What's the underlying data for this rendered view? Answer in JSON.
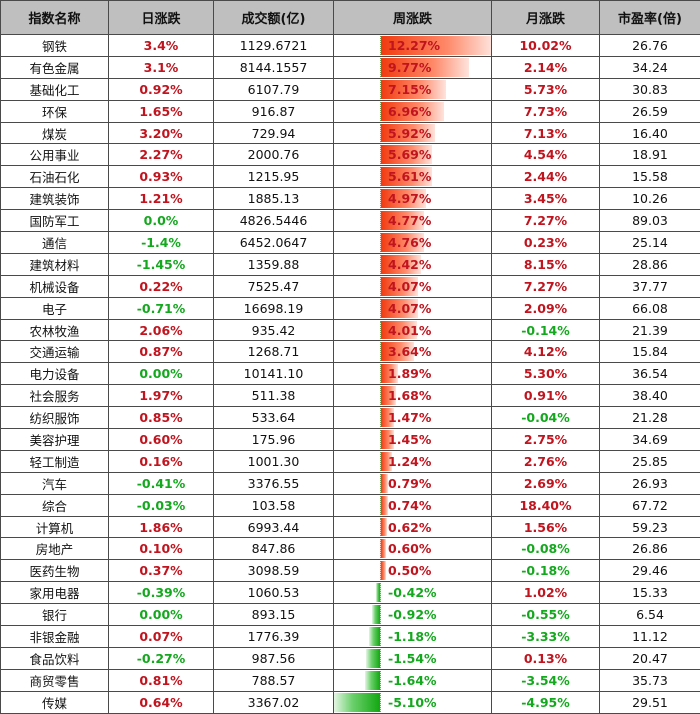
{
  "table": {
    "headers": [
      "指数名称",
      "日涨跌",
      "成交额(亿)",
      "周涨跌",
      "月涨跌",
      "市盈率(倍)"
    ],
    "colors": {
      "up": "#c0141e",
      "down": "#14a81e",
      "header_bg": "#bfbfbf",
      "bar_pos": "#f03a10",
      "bar_neg": "#11a811"
    },
    "rows": [
      {
        "name": "钢铁",
        "day": "3.4%",
        "turnover": "1129.6721",
        "week": "12.27%",
        "month": "10.02%",
        "pe": "26.76"
      },
      {
        "name": "有色金属",
        "day": "3.1%",
        "turnover": "8144.1557",
        "week": "9.77%",
        "month": "2.14%",
        "pe": "34.24"
      },
      {
        "name": "基础化工",
        "day": "0.92%",
        "turnover": "6107.79",
        "week": "7.15%",
        "month": "5.73%",
        "pe": "30.83"
      },
      {
        "name": "环保",
        "day": "1.65%",
        "turnover": "916.87",
        "week": "6.96%",
        "month": "7.73%",
        "pe": "26.59"
      },
      {
        "name": "煤炭",
        "day": "3.20%",
        "turnover": "729.94",
        "week": "5.92%",
        "month": "7.13%",
        "pe": "16.40"
      },
      {
        "name": "公用事业",
        "day": "2.27%",
        "turnover": "2000.76",
        "week": "5.69%",
        "month": "4.54%",
        "pe": "18.91"
      },
      {
        "name": "石油石化",
        "day": "0.93%",
        "turnover": "1215.95",
        "week": "5.61%",
        "month": "2.44%",
        "pe": "15.58"
      },
      {
        "name": "建筑装饰",
        "day": "1.21%",
        "turnover": "1885.13",
        "week": "4.97%",
        "month": "3.45%",
        "pe": "10.26"
      },
      {
        "name": "国防军工",
        "day": "0.0%",
        "turnover": "4826.5446",
        "week": "4.77%",
        "month": "7.27%",
        "pe": "89.03"
      },
      {
        "name": "通信",
        "day": "-1.4%",
        "turnover": "6452.0647",
        "week": "4.76%",
        "month": "0.23%",
        "pe": "25.14"
      },
      {
        "name": "建筑材料",
        "day": "-1.45%",
        "turnover": "1359.88",
        "week": "4.42%",
        "month": "8.15%",
        "pe": "28.86"
      },
      {
        "name": "机械设备",
        "day": "0.22%",
        "turnover": "7525.47",
        "week": "4.07%",
        "month": "7.27%",
        "pe": "37.77"
      },
      {
        "name": "电子",
        "day": "-0.71%",
        "turnover": "16698.19",
        "week": "4.07%",
        "month": "2.09%",
        "pe": "66.08"
      },
      {
        "name": "农林牧渔",
        "day": "2.06%",
        "turnover": "935.42",
        "week": "4.01%",
        "month": "-0.14%",
        "pe": "21.39"
      },
      {
        "name": "交通运输",
        "day": "0.87%",
        "turnover": "1268.71",
        "week": "3.64%",
        "month": "4.12%",
        "pe": "15.84"
      },
      {
        "name": "电力设备",
        "day": "0.00%",
        "turnover": "10141.10",
        "week": "1.89%",
        "month": "5.30%",
        "pe": "36.54"
      },
      {
        "name": "社会服务",
        "day": "1.97%",
        "turnover": "511.38",
        "week": "1.68%",
        "month": "0.91%",
        "pe": "38.40"
      },
      {
        "name": "纺织服饰",
        "day": "0.85%",
        "turnover": "533.64",
        "week": "1.47%",
        "month": "-0.04%",
        "pe": "21.28"
      },
      {
        "name": "美容护理",
        "day": "0.60%",
        "turnover": "175.96",
        "week": "1.45%",
        "month": "2.75%",
        "pe": "34.69"
      },
      {
        "name": "轻工制造",
        "day": "0.16%",
        "turnover": "1001.30",
        "week": "1.24%",
        "month": "2.76%",
        "pe": "25.85"
      },
      {
        "name": "汽车",
        "day": "-0.41%",
        "turnover": "3376.55",
        "week": "0.79%",
        "month": "2.69%",
        "pe": "26.93"
      },
      {
        "name": "综合",
        "day": "-0.03%",
        "turnover": "103.58",
        "week": "0.74%",
        "month": "18.40%",
        "pe": "67.72"
      },
      {
        "name": "计算机",
        "day": "1.86%",
        "turnover": "6993.44",
        "week": "0.62%",
        "month": "1.56%",
        "pe": "59.23"
      },
      {
        "name": "房地产",
        "day": "0.10%",
        "turnover": "847.86",
        "week": "0.60%",
        "month": "-0.08%",
        "pe": "26.86"
      },
      {
        "name": "医药生物",
        "day": "0.37%",
        "turnover": "3098.59",
        "week": "0.50%",
        "month": "-0.18%",
        "pe": "29.46"
      },
      {
        "name": "家用电器",
        "day": "-0.39%",
        "turnover": "1060.53",
        "week": "-0.42%",
        "month": "1.02%",
        "pe": "15.33"
      },
      {
        "name": "银行",
        "day": "0.00%",
        "turnover": "893.15",
        "week": "-0.92%",
        "month": "-0.55%",
        "pe": "6.54"
      },
      {
        "name": "非银金融",
        "day": "0.07%",
        "turnover": "1776.39",
        "week": "-1.18%",
        "month": "-3.33%",
        "pe": "11.12"
      },
      {
        "name": "食品饮料",
        "day": "-0.27%",
        "turnover": "987.56",
        "week": "-1.54%",
        "month": "0.13%",
        "pe": "20.47"
      },
      {
        "name": "商贸零售",
        "day": "0.81%",
        "turnover": "788.57",
        "week": "-1.64%",
        "month": "-3.54%",
        "pe": "35.73"
      },
      {
        "name": "传媒",
        "day": "0.64%",
        "turnover": "3367.02",
        "week": "-5.10%",
        "month": "-4.95%",
        "pe": "29.51"
      }
    ]
  }
}
